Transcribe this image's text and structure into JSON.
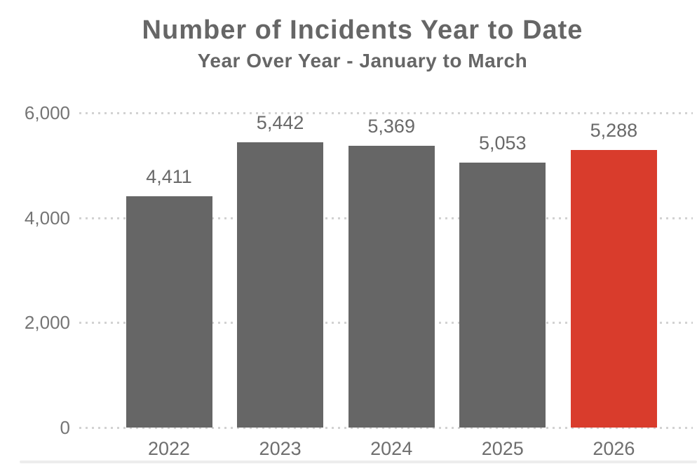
{
  "header": {
    "title": "Number of Incidents Year to Date",
    "subtitle": "Year Over Year - January to March"
  },
  "chart_data": {
    "type": "bar",
    "title": "Number of Incidents Year to Date",
    "subtitle": "Year Over Year - January to March",
    "categories": [
      "2022",
      "2023",
      "2024",
      "2025",
      "2026"
    ],
    "values": [
      4411,
      5442,
      5369,
      5053,
      5288
    ],
    "value_labels": [
      "4,411",
      "5,442",
      "5,369",
      "5,053",
      "5,288"
    ],
    "xlabel": "",
    "ylabel": "",
    "ylim": [
      0,
      6000
    ],
    "yticks": [
      0,
      2000,
      4000,
      6000
    ],
    "ytick_labels": [
      "0",
      "2,000",
      "4,000",
      "6,000"
    ],
    "grid": "horizontal-dotted",
    "legend": "none",
    "highlight_category": "2026",
    "colors": {
      "bar_default": "#666666",
      "bar_highlight": "#D93C2C",
      "title_text": "#666666",
      "tick_text": "#757575",
      "value_text": "#696969",
      "gridline": "#d2d2d2"
    }
  }
}
